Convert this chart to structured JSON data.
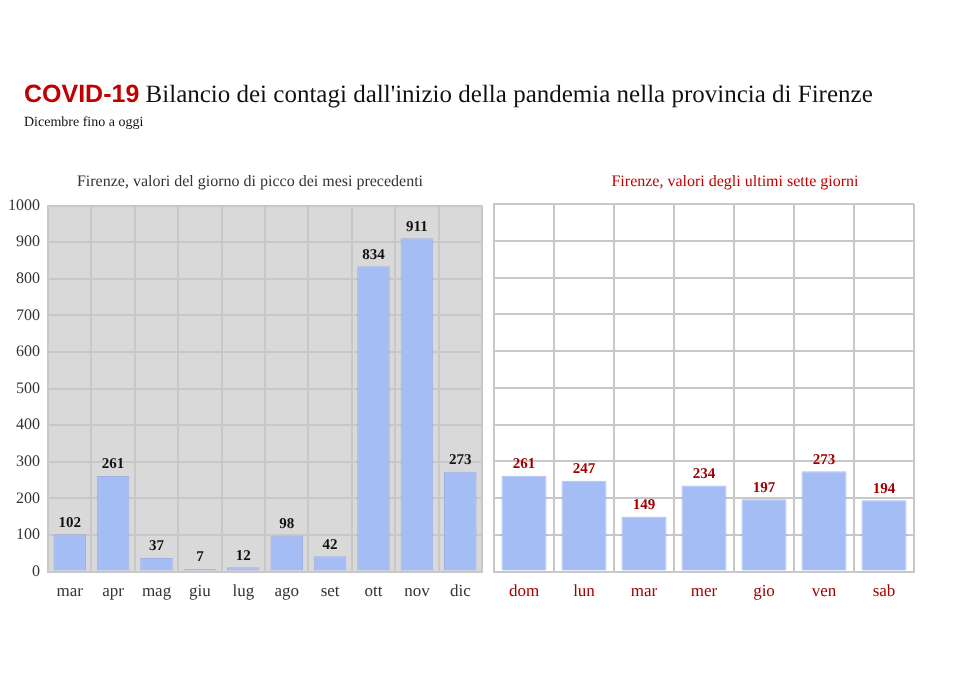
{
  "chart_data": [
    {
      "type": "bar",
      "title": "COVID-19 Bilancio dei contagi dall'inizio della pandemia nella provincia di Firenze",
      "subtitle": "Dicembre fino a oggi",
      "annotations": [
        "Firenze, valori del giorno di picco dei mesi precedenti"
      ],
      "categories": [
        "mar",
        "apr",
        "mag",
        "giu",
        "lug",
        "ago",
        "set",
        "ott",
        "nov",
        "dic"
      ],
      "values": [
        102,
        261,
        37,
        7,
        12,
        98,
        42,
        834,
        911,
        273
      ],
      "color": "#a4bdf5",
      "ylim": [
        0,
        1000
      ],
      "yticks": [
        0,
        100,
        200,
        300,
        400,
        500,
        600,
        700,
        800,
        900,
        1000
      ],
      "grid": true,
      "data_labels": true
    },
    {
      "type": "bar",
      "annotations": [
        "Firenze, valori degli ultimi sette giorni"
      ],
      "categories": [
        "dom",
        "lun",
        "mar",
        "mer",
        "gio",
        "ven",
        "sab"
      ],
      "values": [
        261,
        247,
        149,
        234,
        197,
        273,
        194
      ],
      "color": "#a4bdf5",
      "ylim": [
        0,
        1000
      ],
      "yticks": [
        {
          "value": 0,
          "label": null
        },
        {
          "value": 100,
          "label": null
        },
        {
          "value": 200,
          "label": null
        },
        {
          "value": 300,
          "label": null
        },
        {
          "value": 400,
          "label": null
        },
        {
          "value": 500,
          "label": null
        },
        {
          "value": 600,
          "label": null
        },
        {
          "value": 700,
          "label": null
        },
        {
          "value": 800,
          "label": null
        },
        {
          "value": 900,
          "label": null
        },
        {
          "value": 1000,
          "label": null
        }
      ],
      "grid": true,
      "data_labels": true,
      "tick_labels": "x"
    }
  ]
}
